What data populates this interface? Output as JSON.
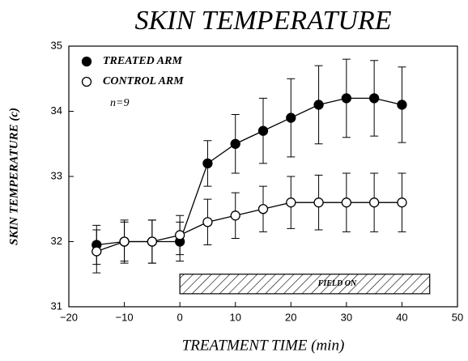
{
  "chart_data": {
    "type": "line",
    "title": "SKIN TEMPERATURE",
    "xlabel": "TREATMENT TIME (min)",
    "ylabel": "SKIN TEMPERATURE (c)",
    "x": [
      -15,
      -10,
      -5,
      0,
      5,
      10,
      15,
      20,
      25,
      30,
      35,
      40
    ],
    "series": [
      {
        "name": "TREATED ARM",
        "color": "#000000",
        "marker": "filled",
        "values": [
          31.95,
          32.0,
          32.0,
          32.0,
          33.2,
          33.5,
          33.7,
          33.9,
          34.1,
          34.2,
          34.2,
          34.1
        ],
        "errors": [
          0.3,
          0.33,
          0.33,
          0.3,
          0.35,
          0.45,
          0.5,
          0.6,
          0.6,
          0.6,
          0.58,
          0.58
        ]
      },
      {
        "name": "CONTROL ARM",
        "color": "#000000",
        "marker": "open",
        "values": [
          31.85,
          32.0,
          32.0,
          32.1,
          32.3,
          32.4,
          32.5,
          32.6,
          32.6,
          32.6,
          32.6,
          32.6
        ],
        "errors": [
          0.33,
          0.3,
          0.33,
          0.3,
          0.35,
          0.35,
          0.35,
          0.4,
          0.42,
          0.45,
          0.45,
          0.45
        ]
      }
    ],
    "annotation": "n=9",
    "field_on": {
      "label": "FIELD ON",
      "x": [
        0,
        45
      ],
      "y": [
        31.2,
        31.5
      ]
    },
    "xlim": [
      -20,
      50
    ],
    "xticks": [
      {
        "value": -20,
        "label": "−20"
      },
      {
        "value": -10,
        "label": "−10"
      },
      0,
      10,
      20,
      30,
      40,
      50
    ],
    "ylim": [
      31,
      35
    ],
    "yticks": [
      31,
      32,
      33,
      34,
      35
    ],
    "legend": "upper left",
    "grid": false
  }
}
